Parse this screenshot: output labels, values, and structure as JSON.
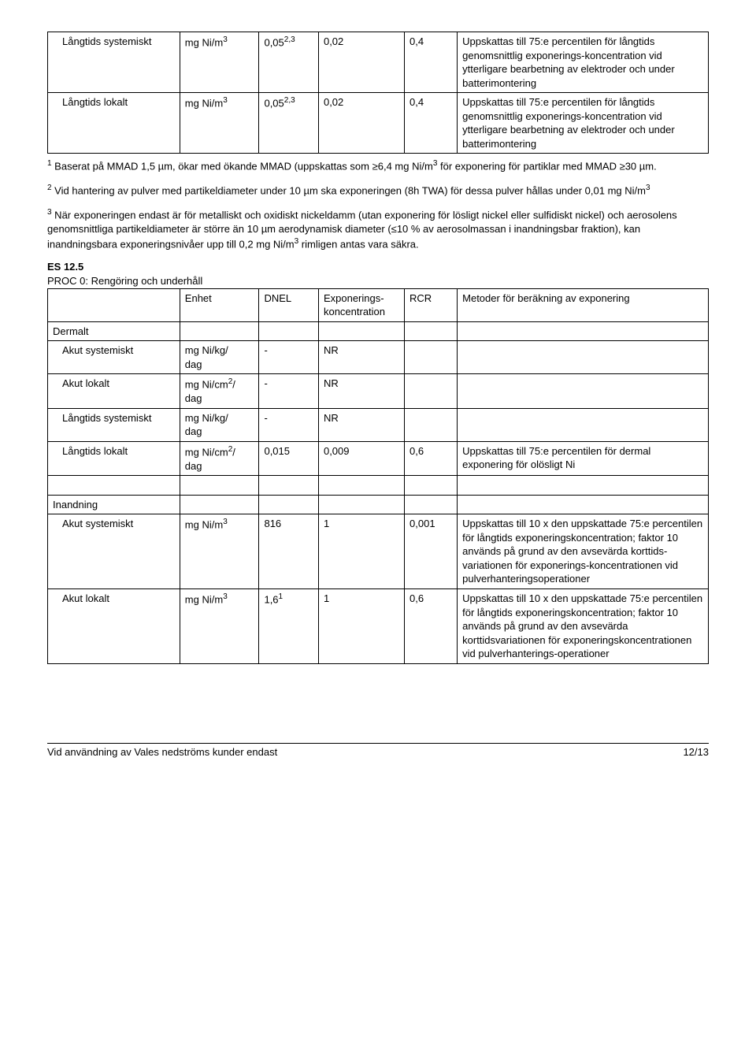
{
  "table1": {
    "rows": [
      {
        "label": "Långtids systemiskt",
        "unit": "mg Ni/m",
        "unit_sup": "3",
        "dnel": "0,05",
        "dnel_sup": "2,3",
        "conc": "0,02",
        "rcr": "0,4",
        "method": "Uppskattas till 75:e percentilen för långtids genomsnittlig exponerings-koncentration vid ytterligare bearbetning av elektroder och under batterimontering"
      },
      {
        "label": "Långtids lokalt",
        "unit": "mg Ni/m",
        "unit_sup": "3",
        "dnel": "0,05",
        "dnel_sup": "2,3",
        "conc": "0,02",
        "rcr": "0,4",
        "method": "Uppskattas till 75:e percentilen för långtids genomsnittlig exponerings-koncentration vid ytterligare bearbetning av elektroder och under batterimontering"
      }
    ]
  },
  "note1_pre": "1",
  "note1_a": " Baserat på MMAD 1,5 µm, ökar med ökande MMAD (uppskattas som ≥6,4 mg Ni/m",
  "note1_sup": "3",
  "note1_b": " för exponering för partiklar med MMAD ≥30 µm.",
  "note2_pre": "2",
  "note2_a": " Vid hantering av pulver med partikeldiameter under 10 µm ska exponeringen (8h TWA) för dessa pulver hållas under 0,01 mg Ni/m",
  "note2_sup": "3",
  "note3_pre": "3",
  "note3_a": " När exponeringen endast är för metalliskt och oxidiskt nickeldamm (utan exponering för lösligt nickel eller sulfidiskt nickel) och aerosolens genomsnittliga partikeldiameter är större än 10 µm aerodynamisk diameter (≤10 % av aerosolmassan i inandningsbar fraktion), kan inandningsbara exponeringsnivåer upp till 0,2 mg Ni/m",
  "note3_sup": "3",
  "note3_b": " rimligen antas vara säkra.",
  "es_title": "ES 12.5",
  "es_sub": "PROC 0: Rengöring och underhåll",
  "headers": {
    "c2": "Enhet",
    "c3": "DNEL",
    "c4": "Exponerings-koncentration",
    "c5": "RCR",
    "c6": "Metoder för beräkning av exponering"
  },
  "dermalt": "Dermalt",
  "inandning": "Inandning",
  "table2": {
    "dermal": [
      {
        "label": "Akut systemiskt",
        "unit_a": "mg Ni/kg/",
        "unit_b": "dag",
        "dnel": "-",
        "conc": "NR",
        "rcr": "",
        "method": ""
      },
      {
        "label": "Akut lokalt",
        "unit_a": "mg Ni/cm",
        "unit_sup": "2",
        "unit_c": "/",
        "unit_b": "dag",
        "dnel": "-",
        "conc": "NR",
        "rcr": "",
        "method": ""
      },
      {
        "label": "Långtids systemiskt",
        "unit_a": "mg Ni/kg/",
        "unit_b": "dag",
        "dnel": "-",
        "conc": "NR",
        "rcr": "",
        "method": ""
      },
      {
        "label": "Långtids lokalt",
        "unit_a": "mg Ni/cm",
        "unit_sup": "2",
        "unit_c": "/",
        "unit_b": "dag",
        "dnel": "0,015",
        "conc": "0,009",
        "rcr": "0,6",
        "method": "Uppskattas till 75:e percentilen för dermal exponering för olösligt Ni"
      }
    ],
    "inh": [
      {
        "label": "Akut systemiskt",
        "unit": "mg Ni/m",
        "unit_sup": "3",
        "dnel": "816",
        "conc": "1",
        "rcr": "0,001",
        "method": "Uppskattas till 10 x den uppskattade 75:e percentilen för långtids exponeringskoncentration; faktor 10 används på grund av den avsevärda korttids-variationen för exponerings-koncentrationen vid pulverhanteringsoperationer"
      },
      {
        "label": "Akut lokalt",
        "unit": "mg Ni/m",
        "unit_sup": "3",
        "dnel": "1,6",
        "dnel_sup": "1",
        "conc": "1",
        "rcr": "0,6",
        "method": "Uppskattas till 10 x den uppskattade 75:e percentilen för långtids exponeringskoncentration; faktor 10 används på grund av den avsevärda korttidsvariationen för exponeringskoncentrationen vid pulverhanterings-operationer"
      }
    ]
  },
  "footer_left": "Vid användning av Vales nedströms kunder endast",
  "footer_right": "12/13"
}
